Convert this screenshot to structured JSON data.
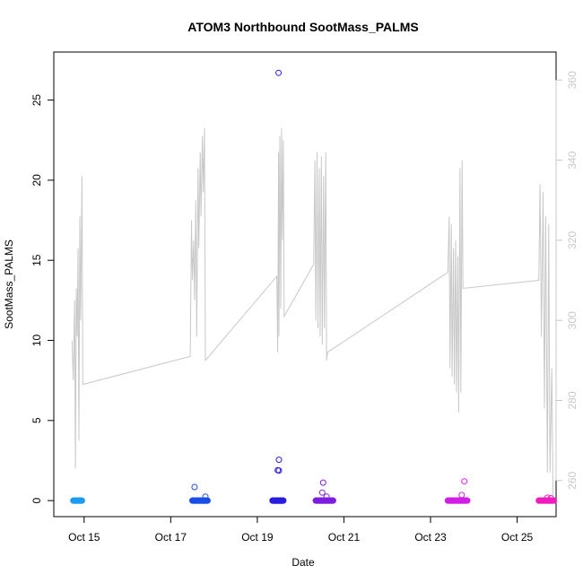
{
  "chart_data": {
    "type": "scatter",
    "title": "ATOM3 Northbound SootMass_PALMS",
    "xlabel": "Date",
    "ylabel": "SootMass_PALMS",
    "x_ticks": [
      "Oct 15",
      "Oct 17",
      "Oct 19",
      "Oct 21",
      "Oct 23",
      "Oct 25"
    ],
    "y_ticks": [
      0,
      5,
      10,
      15,
      20,
      25
    ],
    "y_right_ticks": [
      260,
      280,
      300,
      320,
      340,
      360
    ],
    "ylim": [
      -1,
      28
    ],
    "y_right_lim": [
      251,
      367
    ],
    "xlim_days_oct": [
      14.3,
      25.9
    ],
    "grid": false,
    "colors": {
      "secondary_line": "#c8c8c8",
      "right_axis": "#c8c8c8",
      "axis": "#000000"
    },
    "scatter_groups": [
      {
        "color": "#1e9bf0",
        "x_range": [
          14.75,
          14.95
        ],
        "zeros": 40,
        "outliers": []
      },
      {
        "color": "#1a4fe6",
        "x_range": [
          17.5,
          17.85
        ],
        "zeros": 55,
        "outliers": [
          [
            17.55,
            0.85
          ],
          [
            17.8,
            0.25
          ]
        ]
      },
      {
        "color": "#2a1ee0",
        "x_range": [
          19.35,
          19.6
        ],
        "zeros": 50,
        "outliers": [
          [
            19.49,
            26.7
          ],
          [
            19.5,
            2.55
          ],
          [
            19.47,
            1.9
          ],
          [
            19.5,
            1.88
          ]
        ]
      },
      {
        "color": "#7e1ee0",
        "x_range": [
          20.35,
          20.75
        ],
        "zeros": 55,
        "outliers": [
          [
            20.52,
            1.12
          ],
          [
            20.5,
            0.5
          ],
          [
            20.6,
            0.25
          ]
        ]
      },
      {
        "color": "#d21ee6",
        "x_range": [
          23.4,
          23.85
        ],
        "zeros": 60,
        "outliers": [
          [
            23.78,
            1.2
          ],
          [
            23.72,
            0.35
          ]
        ]
      },
      {
        "color": "#f01ebe",
        "x_range": [
          25.5,
          25.85
        ],
        "zeros": 45,
        "outliers": [
          [
            25.7,
            0.18
          ],
          [
            25.78,
            0.15
          ]
        ]
      }
    ],
    "secondary_line": {
      "name": "",
      "axis": "right",
      "values": [
        [
          14.72,
          295
        ],
        [
          14.75,
          285
        ],
        [
          14.78,
          305
        ],
        [
          14.8,
          263
        ],
        [
          14.82,
          308
        ],
        [
          14.84,
          296
        ],
        [
          14.86,
          318
        ],
        [
          14.88,
          270
        ],
        [
          14.9,
          326
        ],
        [
          14.92,
          300
        ],
        [
          14.95,
          336
        ],
        [
          14.97,
          284
        ],
        [
          17.45,
          291
        ],
        [
          17.48,
          325
        ],
        [
          17.5,
          310
        ],
        [
          17.53,
          320
        ],
        [
          17.55,
          305
        ],
        [
          17.58,
          330
        ],
        [
          17.6,
          296
        ],
        [
          17.63,
          338
        ],
        [
          17.65,
          318
        ],
        [
          17.68,
          342
        ],
        [
          17.7,
          326
        ],
        [
          17.73,
          346
        ],
        [
          17.75,
          332
        ],
        [
          17.78,
          348
        ],
        [
          17.8,
          290
        ],
        [
          19.45,
          311
        ],
        [
          19.47,
          292
        ],
        [
          19.49,
          342
        ],
        [
          19.5,
          296
        ],
        [
          19.52,
          346
        ],
        [
          19.54,
          303
        ],
        [
          19.56,
          348
        ],
        [
          19.58,
          320
        ],
        [
          19.6,
          345
        ],
        [
          19.62,
          301
        ],
        [
          20.3,
          314
        ],
        [
          20.33,
          340
        ],
        [
          20.35,
          300
        ],
        [
          20.38,
          342
        ],
        [
          20.4,
          298
        ],
        [
          20.43,
          338
        ],
        [
          20.45,
          296
        ],
        [
          20.48,
          341
        ],
        [
          20.5,
          294
        ],
        [
          20.53,
          336
        ],
        [
          20.55,
          298
        ],
        [
          20.58,
          342
        ],
        [
          20.6,
          290
        ],
        [
          20.62,
          292
        ],
        [
          23.4,
          312
        ],
        [
          23.43,
          326
        ],
        [
          23.45,
          288
        ],
        [
          23.48,
          324
        ],
        [
          23.5,
          286
        ],
        [
          23.53,
          318
        ],
        [
          23.55,
          284
        ],
        [
          23.58,
          320
        ],
        [
          23.6,
          282
        ],
        [
          23.63,
          316
        ],
        [
          23.65,
          277
        ],
        [
          23.68,
          338
        ],
        [
          23.7,
          282
        ],
        [
          23.73,
          340
        ],
        [
          23.75,
          308
        ],
        [
          25.5,
          310
        ],
        [
          25.53,
          334
        ],
        [
          25.56,
          296
        ],
        [
          25.6,
          332
        ],
        [
          25.63,
          278
        ],
        [
          25.66,
          326
        ],
        [
          25.7,
          262
        ],
        [
          25.73,
          324
        ],
        [
          25.76,
          262
        ],
        [
          25.8,
          288
        ],
        [
          25.83,
          256
        ]
      ]
    }
  }
}
